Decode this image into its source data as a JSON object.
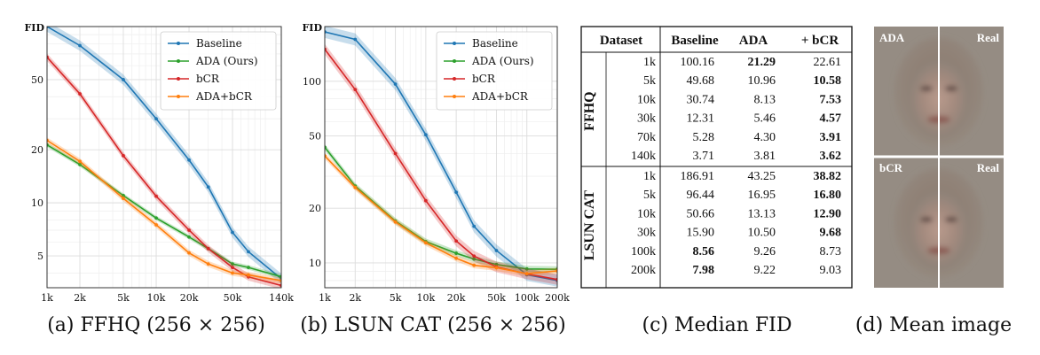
{
  "colors": {
    "Baseline": "#1f77b4",
    "ADA (Ours)": "#2ca02c",
    "bCR": "#d62728",
    "ADA+bCR": "#ff7f0e",
    "grid": "#dddddd"
  },
  "chart_data": [
    {
      "type": "line",
      "title": "(a) FFHQ (256 × 256)",
      "ylabel": "FID",
      "xscale": "log",
      "yscale": "log",
      "xlim": [
        1000,
        140000
      ],
      "ylim": [
        3.3,
        100
      ],
      "grid": true,
      "legend": "top-right",
      "x_ticks": [
        1000,
        2000,
        5000,
        10000,
        20000,
        50000,
        140000
      ],
      "x_tick_labels": [
        "1k",
        "2k",
        "5k",
        "10k",
        "20k",
        "50k",
        "140k"
      ],
      "y_ticks": [
        5,
        10,
        20,
        50
      ],
      "y_tick_labels": [
        "5",
        "10",
        "20",
        "50"
      ],
      "series": [
        {
          "name": "Baseline",
          "x": [
            1000,
            2000,
            5000,
            10000,
            20000,
            30000,
            50000,
            70000,
            140000
          ],
          "y": [
            100,
            78,
            50,
            30,
            17.5,
            12.3,
            6.8,
            5.28,
            3.71
          ],
          "band": 0.07
        },
        {
          "name": "ADA (Ours)",
          "x": [
            1000,
            2000,
            5000,
            10000,
            20000,
            30000,
            50000,
            70000,
            140000
          ],
          "y": [
            21.3,
            16.5,
            11,
            8.2,
            6.4,
            5.5,
            4.5,
            4.3,
            3.81
          ],
          "band": 0.03
        },
        {
          "name": "bCR",
          "x": [
            1000,
            2000,
            5000,
            10000,
            20000,
            30000,
            50000,
            70000,
            140000
          ],
          "y": [
            67,
            41.5,
            18.5,
            10.9,
            7.0,
            5.5,
            4.3,
            3.8,
            3.4
          ],
          "band": 0.05
        },
        {
          "name": "ADA+bCR",
          "x": [
            1000,
            2000,
            5000,
            10000,
            20000,
            30000,
            50000,
            70000,
            140000
          ],
          "y": [
            22.6,
            17.2,
            10.6,
            7.5,
            5.2,
            4.5,
            4.0,
            3.9,
            3.62
          ],
          "band": 0.04
        }
      ]
    },
    {
      "type": "line",
      "title": "(b) LSUN CAT (256 × 256)",
      "ylabel": "FID",
      "xscale": "log",
      "yscale": "log",
      "xlim": [
        1000,
        200000
      ],
      "ylim": [
        7.3,
        200
      ],
      "grid": true,
      "legend": "top-right",
      "x_ticks": [
        1000,
        2000,
        5000,
        10000,
        20000,
        50000,
        100000,
        200000
      ],
      "x_tick_labels": [
        "1k",
        "2k",
        "5k",
        "10k",
        "20k",
        "50k",
        "100k",
        "200k"
      ],
      "y_ticks": [
        10,
        20,
        50,
        100
      ],
      "y_tick_labels": [
        "10",
        "20",
        "50",
        "100"
      ],
      "series": [
        {
          "name": "Baseline",
          "x": [
            1000,
            2000,
            5000,
            10000,
            20000,
            30000,
            50000,
            100000,
            200000
          ],
          "y": [
            186.9,
            170,
            96.4,
            50.7,
            24.5,
            15.9,
            11.7,
            8.6,
            8.0
          ],
          "band": 0.08
        },
        {
          "name": "ADA (Ours)",
          "x": [
            1000,
            2000,
            5000,
            10000,
            20000,
            30000,
            50000,
            100000,
            200000
          ],
          "y": [
            43.3,
            26.5,
            17.0,
            13.1,
            11.3,
            10.5,
            9.8,
            9.26,
            9.22
          ],
          "band": 0.04
        },
        {
          "name": "bCR",
          "x": [
            1000,
            2000,
            5000,
            10000,
            20000,
            30000,
            50000,
            100000,
            200000
          ],
          "y": [
            150,
            90,
            40,
            22,
            13.2,
            10.9,
            9.5,
            8.7,
            8.1
          ],
          "band": 0.07
        },
        {
          "name": "ADA+bCR",
          "x": [
            1000,
            2000,
            5000,
            10000,
            20000,
            30000,
            50000,
            100000,
            200000
          ],
          "y": [
            38.8,
            26,
            16.8,
            12.9,
            10.6,
            9.7,
            9.4,
            8.73,
            9.03
          ],
          "band": 0.04
        }
      ]
    },
    {
      "type": "table",
      "title": "(c) Median FID",
      "columns": [
        "Dataset",
        "Baseline",
        "ADA",
        "+ bCR"
      ],
      "groups": [
        {
          "name": "FFHQ",
          "rows": [
            {
              "size": "1k",
              "values": [
                "100.16",
                "21.29",
                "22.61"
              ],
              "bold": [
                false,
                true,
                false
              ]
            },
            {
              "size": "5k",
              "values": [
                "49.68",
                "10.96",
                "10.58"
              ],
              "bold": [
                false,
                false,
                true
              ]
            },
            {
              "size": "10k",
              "values": [
                "30.74",
                "8.13",
                "7.53"
              ],
              "bold": [
                false,
                false,
                true
              ]
            },
            {
              "size": "30k",
              "values": [
                "12.31",
                "5.46",
                "4.57"
              ],
              "bold": [
                false,
                false,
                true
              ]
            },
            {
              "size": "70k",
              "values": [
                "5.28",
                "4.30",
                "3.91"
              ],
              "bold": [
                false,
                false,
                true
              ]
            },
            {
              "size": "140k",
              "values": [
                "3.71",
                "3.81",
                "3.62"
              ],
              "bold": [
                false,
                false,
                true
              ]
            }
          ]
        },
        {
          "name": "LSUN CAT",
          "rows": [
            {
              "size": "1k",
              "values": [
                "186.91",
                "43.25",
                "38.82"
              ],
              "bold": [
                false,
                false,
                true
              ]
            },
            {
              "size": "5k",
              "values": [
                "96.44",
                "16.95",
                "16.80"
              ],
              "bold": [
                false,
                false,
                true
              ]
            },
            {
              "size": "10k",
              "values": [
                "50.66",
                "13.13",
                "12.90"
              ],
              "bold": [
                false,
                false,
                true
              ]
            },
            {
              "size": "30k",
              "values": [
                "15.90",
                "10.50",
                "9.68"
              ],
              "bold": [
                false,
                false,
                true
              ]
            },
            {
              "size": "100k",
              "values": [
                "8.56",
                "9.26",
                "8.73"
              ],
              "bold": [
                true,
                false,
                false
              ]
            },
            {
              "size": "200k",
              "values": [
                "7.98",
                "9.22",
                "9.03"
              ],
              "bold": [
                true,
                false,
                false
              ]
            }
          ]
        }
      ]
    }
  ],
  "mean_image": {
    "caption": "(d) Mean image",
    "labels": [
      "ADA",
      "Real",
      "bCR",
      "Real"
    ]
  }
}
